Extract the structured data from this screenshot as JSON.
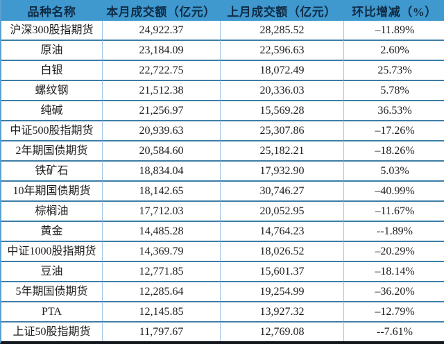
{
  "colors": {
    "header_bg": "#3F98CE",
    "header_text": "#0E2B45",
    "body_text": "#1C1C1C",
    "row_line": "#3D7EA6",
    "col_line": "#9DC3E6",
    "outer_side": "#5AA0D2",
    "bottom_line": "#12161D"
  },
  "chart_data": {
    "type": "table",
    "title": "",
    "columns": [
      "品种名称",
      "本月成交额（亿元）",
      "上月成交额（亿元）",
      "环比增减（%）"
    ],
    "rows": [
      {
        "name": "沪深300股指期货",
        "current_month": "24,922.37",
        "previous_month": "28,285.52",
        "mom_change": "–11.89%"
      },
      {
        "name": "原油",
        "current_month": "23,184.09",
        "previous_month": "22,596.63",
        "mom_change": "2.60%"
      },
      {
        "name": "白银",
        "current_month": "22,722.75",
        "previous_month": "18,072.49",
        "mom_change": "25.73%"
      },
      {
        "name": "螺纹钢",
        "current_month": "21,512.38",
        "previous_month": "20,336.03",
        "mom_change": "5.78%"
      },
      {
        "name": "纯碱",
        "current_month": "21,256.97",
        "previous_month": "15,569.28",
        "mom_change": "36.53%"
      },
      {
        "name": "中证500股指期货",
        "current_month": "20,939.63",
        "previous_month": "25,307.86",
        "mom_change": "–17.26%"
      },
      {
        "name": "2年期国债期货",
        "current_month": "20,584.60",
        "previous_month": "25,182.21",
        "mom_change": "–18.26%"
      },
      {
        "name": "铁矿石",
        "current_month": "18,834.04",
        "previous_month": "17,932.90",
        "mom_change": "5.03%"
      },
      {
        "name": "10年期国债期货",
        "current_month": "18,142.65",
        "previous_month": "30,746.27",
        "mom_change": "–40.99%"
      },
      {
        "name": "棕榈油",
        "current_month": "17,712.03",
        "previous_month": "20,052.95",
        "mom_change": "–11.67%"
      },
      {
        "name": "黄金",
        "current_month": "14,485.28",
        "previous_month": "14,764.23",
        "mom_change": "--1.89%"
      },
      {
        "name": "中证1000股指期货",
        "current_month": "14,369.79",
        "previous_month": "18,026.52",
        "mom_change": "–20.29%"
      },
      {
        "name": "豆油",
        "current_month": "12,771.85",
        "previous_month": "15,601.37",
        "mom_change": "–18.14%"
      },
      {
        "name": "5年期国债期货",
        "current_month": "12,285.64",
        "previous_month": "19,254.99",
        "mom_change": "–36.20%"
      },
      {
        "name": "PTA",
        "current_month": "12,145.85",
        "previous_month": "13,927.32",
        "mom_change": "–12.79%"
      },
      {
        "name": "上证50股指期货",
        "current_month": "11,797.67",
        "previous_month": "12,769.08",
        "mom_change": "--7.61%"
      }
    ]
  }
}
